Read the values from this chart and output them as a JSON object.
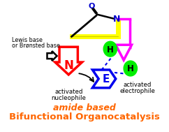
{
  "title_line1": "amide based",
  "title_line2": "Bifunctional Organocatalysis",
  "title_color": "#FF6600",
  "label_lewis": "Lewis base",
  "label_bronsted": "or Brønsted base",
  "label_N": "N",
  "label_E": "E",
  "label_H1": "H",
  "label_H2": "H",
  "label_O": "O",
  "bg_color": "#FFFFFF",
  "red_color": "#FF0000",
  "blue_color": "#0000EE",
  "yellow_color": "#FFFF00",
  "green_color": "#00EE00",
  "magenta_color": "#FF00FF",
  "black_color": "#000000",
  "dark_blue": "#0000CC",
  "amide_N_color": "#0000CC",
  "amide_O_color": "#0000CC"
}
